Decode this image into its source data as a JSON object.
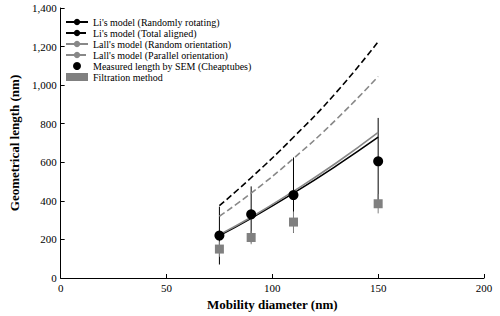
{
  "chart_data": {
    "type": "line",
    "x_label": "Mobility diameter (nm)",
    "y_label": "Geometrical length (nm)",
    "xlim": [
      0,
      200
    ],
    "xticks": [
      0,
      50,
      100,
      150,
      200
    ],
    "ylim": [
      0,
      1400
    ],
    "yticks": [
      0,
      200,
      400,
      600,
      800,
      1000,
      1200,
      1400
    ],
    "grid": false,
    "legend": "top-left",
    "series": [
      {
        "name": "Li's model (Randomly rotating)",
        "type": "line",
        "color": "#000000",
        "line_style": "solid",
        "x": [
          75,
          90,
          110,
          130,
          150
        ],
        "values": [
          220,
          310,
          440,
          580,
          730
        ]
      },
      {
        "name": "Li's model (Total aligned)",
        "type": "line",
        "color": "#000000",
        "line_style": "dashed",
        "x": [
          75,
          90,
          110,
          130,
          150
        ],
        "values": [
          375,
          520,
          730,
          960,
          1225
        ]
      },
      {
        "name": "Lall's model (Random orientation)",
        "type": "line",
        "color": "#888888",
        "line_style": "solid",
        "x": [
          75,
          90,
          110,
          130,
          150
        ],
        "values": [
          225,
          315,
          450,
          595,
          755
        ]
      },
      {
        "name": "Lall's model (Parallel orientation)",
        "type": "line",
        "color": "#888888",
        "line_style": "dashed",
        "x": [
          75,
          90,
          110,
          130,
          150
        ],
        "values": [
          320,
          440,
          620,
          820,
          1045
        ]
      },
      {
        "name": "Measured length by SEM (Cheaptubes)",
        "type": "scatter",
        "color": "#000000",
        "marker": "circle",
        "x": [
          75,
          90,
          110,
          150
        ],
        "values": [
          220,
          330,
          430,
          605
        ],
        "error": [
          150,
          145,
          195,
          225
        ]
      },
      {
        "name": "Filtration method",
        "type": "scatter",
        "color": "#808080",
        "marker": "square",
        "x": [
          75,
          90,
          110,
          150
        ],
        "values": [
          150,
          210,
          290,
          385
        ],
        "error": [
          40,
          35,
          55,
          50
        ]
      }
    ]
  }
}
